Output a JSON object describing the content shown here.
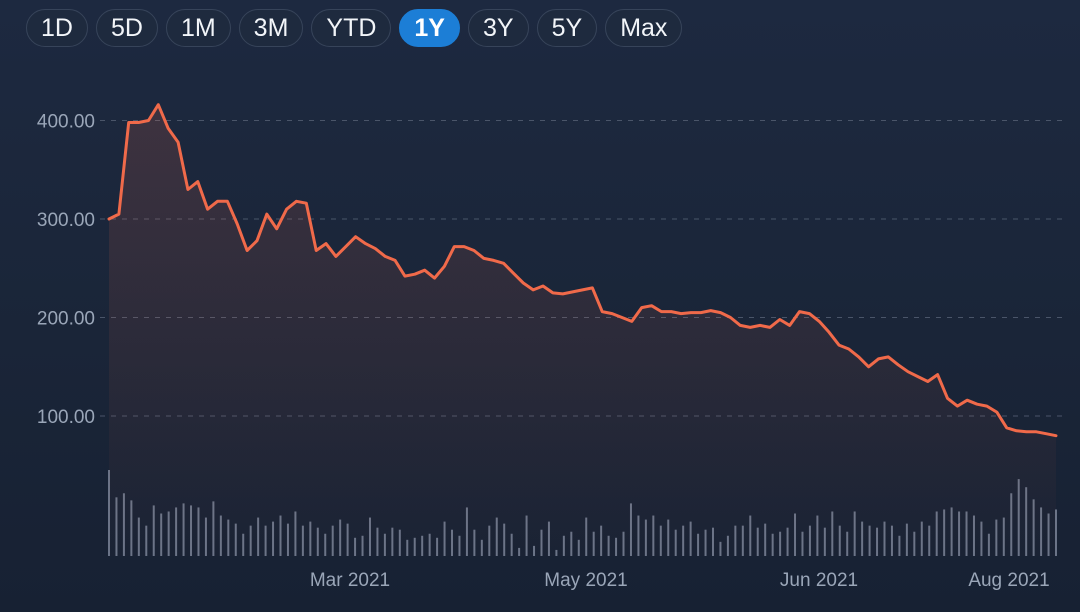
{
  "range_selector": {
    "buttons": [
      {
        "label": "1D",
        "active": false
      },
      {
        "label": "5D",
        "active": false
      },
      {
        "label": "1M",
        "active": false
      },
      {
        "label": "3M",
        "active": false
      },
      {
        "label": "YTD",
        "active": false
      },
      {
        "label": "1Y",
        "active": true
      },
      {
        "label": "3Y",
        "active": false
      },
      {
        "label": "5Y",
        "active": false
      },
      {
        "label": "Max",
        "active": false
      }
    ]
  },
  "colors": {
    "line": "#f06a4a",
    "volume": "#6a7488",
    "grid": "#4a5569",
    "active_button": "#1c7ed6"
  },
  "chart_data": {
    "type": "line",
    "title": "",
    "xlabel": "",
    "ylabel": "",
    "ylim": [
      0,
      430
    ],
    "y_ticks": [
      "100.00",
      "200.00",
      "300.00",
      "400.00"
    ],
    "x_ticks": [
      "Mar 2021",
      "May 2021",
      "Jun 2021",
      "Aug 2021"
    ],
    "grid": true,
    "legend": "none",
    "series": [
      {
        "values": [
          300,
          305,
          398,
          398,
          400,
          416,
          392,
          378,
          330,
          338,
          310,
          318,
          318,
          295,
          268,
          278,
          305,
          290,
          310,
          318,
          316,
          268,
          275,
          262,
          272,
          282,
          275,
          270,
          262,
          258,
          242,
          244,
          248,
          240,
          252,
          272,
          272,
          268,
          260,
          258,
          255,
          245,
          235,
          228,
          232,
          225,
          224,
          226,
          228,
          230,
          206,
          204,
          200,
          196,
          210,
          212,
          206,
          206,
          204,
          205,
          205,
          207,
          205,
          200,
          192,
          190,
          192,
          190,
          198,
          192,
          206,
          204,
          196,
          185,
          172,
          168,
          160,
          150,
          158,
          160,
          152,
          145,
          140,
          135,
          142,
          118,
          110,
          116,
          112,
          110,
          104,
          88,
          85,
          84,
          84,
          82,
          80
        ]
      }
    ],
    "volume": [
      85,
      58,
      62,
      55,
      38,
      30,
      50,
      42,
      44,
      48,
      52,
      50,
      48,
      38,
      54,
      40,
      36,
      32,
      22,
      30,
      38,
      30,
      34,
      40,
      32,
      44,
      30,
      34,
      28,
      22,
      30,
      36,
      32,
      18,
      20,
      38,
      28,
      22,
      28,
      26,
      16,
      18,
      20,
      22,
      18,
      34,
      26,
      20,
      48,
      26,
      16,
      30,
      38,
      32,
      22,
      8,
      40,
      10,
      26,
      34,
      6,
      20,
      24,
      16,
      38,
      24,
      30,
      20,
      18,
      24,
      52,
      40,
      36,
      40,
      30,
      36,
      26,
      30,
      34,
      22,
      26,
      28,
      14,
      20,
      30,
      30,
      40,
      28,
      32,
      22,
      24,
      28,
      42,
      24,
      30,
      40,
      28,
      44,
      30,
      24,
      44,
      34,
      30,
      28,
      34,
      30,
      20,
      32,
      24,
      34,
      30,
      44,
      46,
      48,
      44,
      44,
      40,
      34,
      22,
      36,
      38,
      62,
      76,
      68,
      56,
      48,
      42,
      46
    ]
  }
}
